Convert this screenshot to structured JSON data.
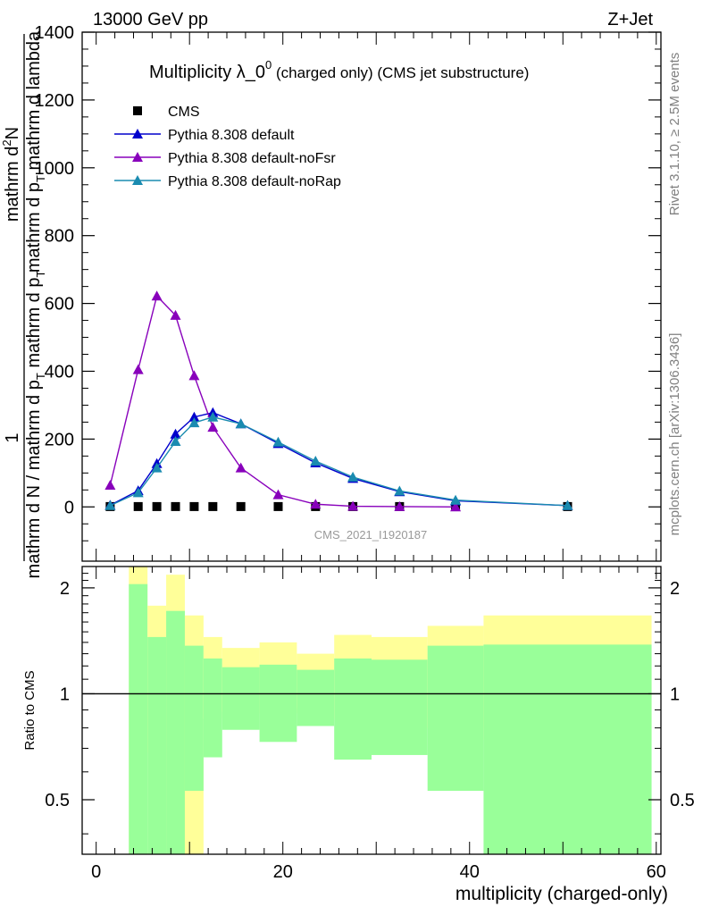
{
  "header": {
    "left": "13000 GeV pp",
    "right": "Z+Jet"
  },
  "side_labels": {
    "rivet": "Rivet 3.1.10, ≥ 2.5M events",
    "mcplots": "mcplots.cern.ch [arXiv:1306.3436]"
  },
  "watermark": "CMS_2021_I1920187",
  "chart_data": [
    {
      "type": "line",
      "title_main": "Multiplicity λ_0",
      "title_sup": "0",
      "title_rest": " (charged only) (CMS jet substructure)",
      "ylabel": {
        "frac_bottom_part1": "1",
        "frac_bottom_part2": "mathrm d N / mathrm d p",
        "frac_bottom_sub": "T",
        "frac_bottom_part3": " mathrm d p",
        "frac_bottom_sub2": "T",
        "frac_top": "mathrm d",
        "frac_top_sup": "2",
        "frac_top_rest": "N",
        "frac_right": "mathrm d p",
        "frac_right_sub": "T",
        "frac_right_rest": " mathrm d lambda"
      },
      "xlim": [
        -1.5,
        60.5
      ],
      "ylim": [
        -160,
        1400
      ],
      "y_ticks": [
        0,
        200,
        400,
        600,
        800,
        1000,
        1200,
        1400
      ],
      "y_tick_labels": [
        "0",
        "200",
        "400",
        "600",
        "800",
        "1000",
        "1200",
        "1400"
      ],
      "legend_position": "top-left",
      "series": [
        {
          "name": "CMS",
          "marker": "square",
          "color": "#000000",
          "x": [
            1.5,
            4.5,
            6.5,
            8.5,
            10.5,
            12.5,
            15.5,
            19.5,
            23.5,
            27.5,
            32.5,
            38.5,
            50.5
          ],
          "y": [
            1,
            1,
            1,
            1,
            1,
            1,
            1,
            1,
            1,
            1,
            1,
            1,
            1
          ]
        },
        {
          "name": "Pythia 8.308 default",
          "marker": "triangle",
          "color": "#0000cc",
          "x": [
            1.5,
            4.5,
            6.5,
            8.5,
            10.5,
            12.5,
            15.5,
            19.5,
            23.5,
            27.5,
            32.5,
            38.5,
            50.5
          ],
          "y": [
            5,
            48,
            128,
            215,
            265,
            278,
            245,
            187,
            130,
            84,
            45,
            18,
            4
          ]
        },
        {
          "name": "Pythia 8.308 default-noFsr",
          "marker": "triangle",
          "color": "#8800bb",
          "x": [
            1.5,
            4.5,
            6.5,
            8.5,
            10.5,
            12.5,
            15.5,
            19.5,
            23.5,
            27.5,
            32.5,
            38.5
          ],
          "y": [
            64,
            405,
            622,
            565,
            387,
            235,
            115,
            36,
            8,
            2,
            1,
            0
          ]
        },
        {
          "name": "Pythia 8.308 default-noRap",
          "marker": "triangle",
          "color": "#1a8bb0",
          "x": [
            1.5,
            4.5,
            6.5,
            8.5,
            10.5,
            12.5,
            15.5,
            19.5,
            23.5,
            27.5,
            32.5,
            38.5,
            50.5
          ],
          "y": [
            4,
            42,
            115,
            193,
            248,
            265,
            245,
            191,
            135,
            88,
            47,
            20,
            4
          ]
        }
      ]
    },
    {
      "type": "area",
      "ylabel": "Ratio to CMS",
      "xlabel": "multiplicity (charged-only)",
      "xlim": [
        -1.5,
        60.5
      ],
      "ylim": [
        0.35,
        2.3
      ],
      "x_ticks": [
        0,
        20,
        40,
        60
      ],
      "x_tick_labels": [
        "0",
        "20",
        "40",
        "60"
      ],
      "y_ticks": [
        0.5,
        1,
        2
      ],
      "y_tick_labels": [
        "0.5",
        "1",
        "2"
      ],
      "reference_line": 1,
      "band_colors": {
        "inner": "#99ff99",
        "outer": "#ffff99"
      },
      "bins": [
        {
          "x0": 3.5,
          "x1": 5.5,
          "inner_lo": 0.0,
          "inner_hi": 2.05,
          "outer_lo": 0.0,
          "outer_hi": 2.45
        },
        {
          "x0": 5.5,
          "x1": 7.5,
          "inner_lo": 0.0,
          "inner_hi": 1.45,
          "outer_lo": 0.68,
          "outer_hi": 1.78
        },
        {
          "x0": 7.5,
          "x1": 9.5,
          "inner_lo": 0.0,
          "inner_hi": 1.72,
          "outer_lo": 0.0,
          "outer_hi": 2.18
        },
        {
          "x0": 9.5,
          "x1": 11.5,
          "inner_lo": 0.53,
          "inner_hi": 1.37,
          "outer_lo": 0.0,
          "outer_hi": 1.67
        },
        {
          "x0": 11.5,
          "x1": 13.5,
          "inner_lo": 0.66,
          "inner_hi": 1.26,
          "outer_lo": 0.85,
          "outer_hi": 1.45
        },
        {
          "x0": 13.5,
          "x1": 17.5,
          "inner_lo": 0.79,
          "inner_hi": 1.19,
          "outer_lo": 0.89,
          "outer_hi": 1.35
        },
        {
          "x0": 17.5,
          "x1": 21.5,
          "inner_lo": 0.73,
          "inner_hi": 1.21,
          "outer_lo": 0.88,
          "outer_hi": 1.4
        },
        {
          "x0": 21.5,
          "x1": 25.5,
          "inner_lo": 0.81,
          "inner_hi": 1.17,
          "outer_lo": 0.91,
          "outer_hi": 1.3
        },
        {
          "x0": 25.5,
          "x1": 29.5,
          "inner_lo": 0.65,
          "inner_hi": 1.26,
          "outer_lo": 0.85,
          "outer_hi": 1.47
        },
        {
          "x0": 29.5,
          "x1": 35.5,
          "inner_lo": 0.67,
          "inner_hi": 1.25,
          "outer_lo": 0.86,
          "outer_hi": 1.45
        },
        {
          "x0": 35.5,
          "x1": 41.5,
          "inner_lo": 0.53,
          "inner_hi": 1.37,
          "outer_lo": 0.8,
          "outer_hi": 1.56
        },
        {
          "x0": 41.5,
          "x1": 59.5,
          "inner_lo": 0.0,
          "inner_hi": 1.38,
          "outer_lo": 0.74,
          "outer_hi": 1.67
        }
      ]
    }
  ]
}
